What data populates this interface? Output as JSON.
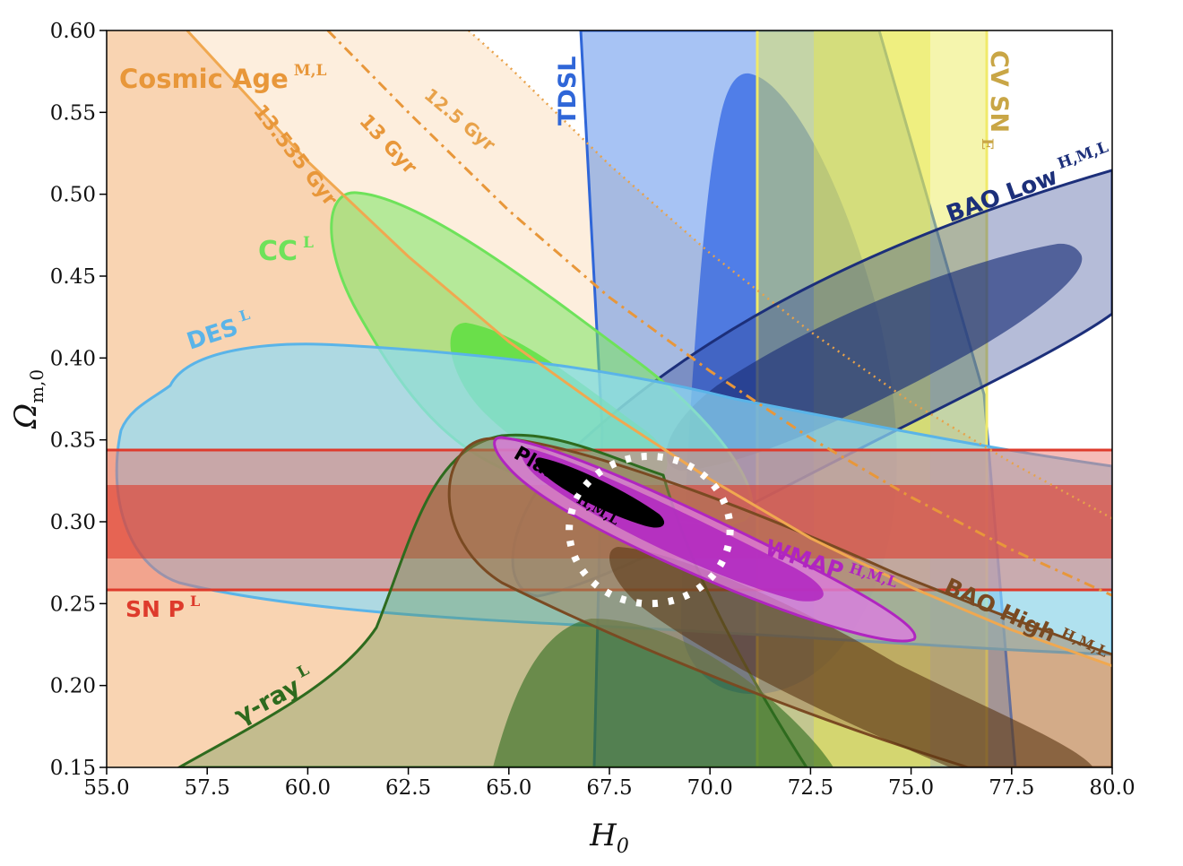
{
  "chart_data": {
    "type": "contour",
    "xlabel": "H_0",
    "ylabel": "Ω_m,0",
    "xlim": [
      55.0,
      80.0
    ],
    "ylim": [
      0.15,
      0.6
    ],
    "xticks": [
      "55.0",
      "57.5",
      "60.0",
      "62.5",
      "65.0",
      "67.5",
      "70.0",
      "72.5",
      "75.0",
      "77.5",
      "80.0"
    ],
    "yticks": [
      "0.15",
      "0.20",
      "0.25",
      "0.30",
      "0.35",
      "0.40",
      "0.45",
      "0.50",
      "0.55",
      "0.60"
    ],
    "grid": false,
    "constraints": [
      {
        "name": "Cosmic Age",
        "sup": "M,L",
        "color": "#e8973a"
      },
      {
        "name": "TDSL",
        "sup": "",
        "color": "#2f66d8"
      },
      {
        "name": "CV SN",
        "sup": "E",
        "color": "#c9a646"
      },
      {
        "name": "BAO Low",
        "sup": "H,M,L",
        "color": "#1c2f7a"
      },
      {
        "name": "CC",
        "sup": "L",
        "color": "#6ee25a"
      },
      {
        "name": "DES",
        "sup": "L",
        "color": "#5ab4e8"
      },
      {
        "name": "SN P",
        "sup": "L",
        "color": "#de3b2c"
      },
      {
        "name": "Planck",
        "sup": "H,M,L",
        "color": "#000000"
      },
      {
        "name": "WMAP",
        "sup": "H,M,L",
        "color": "#b025c0"
      },
      {
        "name": "BAO High",
        "sup": "H,M,L",
        "color": "#7a4a22"
      },
      {
        "name": "γ-ray",
        "sup": "L",
        "color": "#2e6b1e"
      }
    ],
    "age_curves": [
      {
        "label": "13.535 Gyr",
        "points": [
          [
            57.0,
            0.6
          ],
          [
            60.0,
            0.52
          ],
          [
            62.5,
            0.462
          ],
          [
            65.0,
            0.41
          ],
          [
            67.5,
            0.366
          ],
          [
            70.0,
            0.326
          ],
          [
            72.5,
            0.29
          ],
          [
            75.0,
            0.26
          ],
          [
            77.5,
            0.234
          ],
          [
            80.0,
            0.212
          ]
        ]
      },
      {
        "label": "13 Gyr",
        "points": [
          [
            60.5,
            0.6
          ],
          [
            62.5,
            0.55
          ],
          [
            65.0,
            0.49
          ],
          [
            67.5,
            0.437
          ],
          [
            70.0,
            0.392
          ],
          [
            72.5,
            0.351
          ],
          [
            75.0,
            0.315
          ],
          [
            77.5,
            0.283
          ],
          [
            80.0,
            0.255
          ]
        ]
      },
      {
        "label": "12.5 Gyr",
        "points": [
          [
            64.0,
            0.6
          ],
          [
            65.0,
            0.578
          ],
          [
            67.5,
            0.518
          ],
          [
            70.0,
            0.464
          ],
          [
            72.5,
            0.416
          ],
          [
            75.0,
            0.373
          ],
          [
            77.5,
            0.336
          ],
          [
            80.0,
            0.302
          ]
        ]
      }
    ],
    "bands": {
      "sn_p_outer": [
        0.258,
        0.344
      ],
      "sn_p_inner": [
        0.277,
        0.322
      ],
      "cv_sn_inner": [
        72.6,
        75.5
      ],
      "cv_sn_outer": [
        71.2,
        76.9
      ]
    },
    "highlight_circle": {
      "center": [
        68.5,
        0.295
      ],
      "radius_h0": 2.0,
      "radius_om": 0.045
    }
  }
}
